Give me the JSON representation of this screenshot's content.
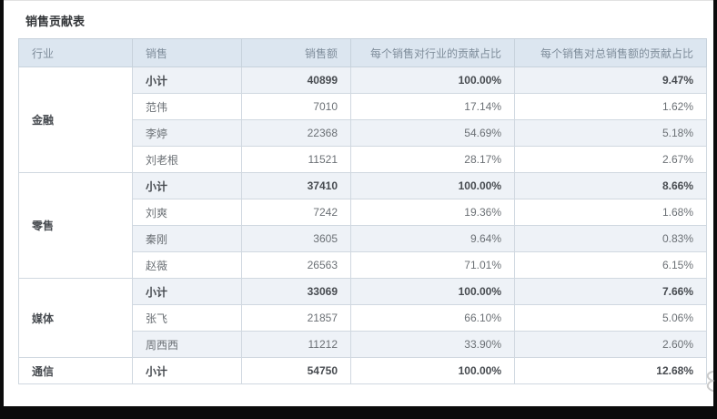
{
  "page": {
    "title": "销售贡献表"
  },
  "table": {
    "columns": [
      {
        "label": "行业",
        "align": "left"
      },
      {
        "label": "销售",
        "align": "left"
      },
      {
        "label": "销售额",
        "align": "right"
      },
      {
        "label": "每个销售对行业的贡献占比",
        "align": "right"
      },
      {
        "label": "每个销售对总销售额的贡献占比",
        "align": "right"
      }
    ],
    "groups": [
      {
        "industry": "金融",
        "rows": [
          {
            "name": "小计",
            "amount": "40899",
            "industry_pct": "100.00%",
            "total_pct": "9.47%",
            "subtotal": true
          },
          {
            "name": "范伟",
            "amount": "7010",
            "industry_pct": "17.14%",
            "total_pct": "1.62%",
            "subtotal": false
          },
          {
            "name": "李婷",
            "amount": "22368",
            "industry_pct": "54.69%",
            "total_pct": "5.18%",
            "subtotal": false
          },
          {
            "name": "刘老根",
            "amount": "11521",
            "industry_pct": "28.17%",
            "total_pct": "2.67%",
            "subtotal": false
          }
        ]
      },
      {
        "industry": "零售",
        "rows": [
          {
            "name": "小计",
            "amount": "37410",
            "industry_pct": "100.00%",
            "total_pct": "8.66%",
            "subtotal": true
          },
          {
            "name": "刘爽",
            "amount": "7242",
            "industry_pct": "19.36%",
            "total_pct": "1.68%",
            "subtotal": false
          },
          {
            "name": "秦刚",
            "amount": "3605",
            "industry_pct": "9.64%",
            "total_pct": "0.83%",
            "subtotal": false
          },
          {
            "name": "赵薇",
            "amount": "26563",
            "industry_pct": "71.01%",
            "total_pct": "6.15%",
            "subtotal": false
          }
        ]
      },
      {
        "industry": "媒体",
        "rows": [
          {
            "name": "小计",
            "amount": "33069",
            "industry_pct": "100.00%",
            "total_pct": "7.66%",
            "subtotal": true
          },
          {
            "name": "张飞",
            "amount": "21857",
            "industry_pct": "66.10%",
            "total_pct": "5.06%",
            "subtotal": false
          },
          {
            "name": "周西西",
            "amount": "11212",
            "industry_pct": "33.90%",
            "total_pct": "2.60%",
            "subtotal": false
          }
        ]
      },
      {
        "industry": "通信",
        "rows": [
          {
            "name": "小计",
            "amount": "54750",
            "industry_pct": "100.00%",
            "total_pct": "12.68%",
            "subtotal": true
          }
        ]
      }
    ]
  },
  "colors": {
    "header_bg": "#dce6f0",
    "stripe_bg": "#eef2f7",
    "border": "#d0d8e0",
    "frame": "#0b0b0b"
  }
}
